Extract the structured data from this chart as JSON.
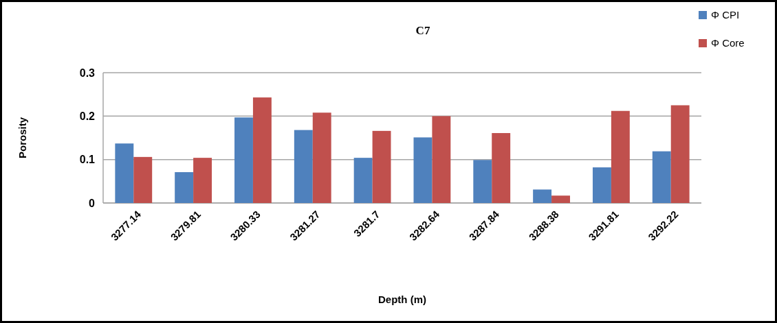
{
  "chart_data": {
    "type": "bar",
    "title": "C7",
    "xlabel": "Depth (m)",
    "ylabel": "Porosity",
    "categories": [
      "3277.14",
      "3279.81",
      "3280.33",
      "3281.27",
      "3281.7",
      "3282.64",
      "3287.84",
      "3288.38",
      "3291.81",
      "3292.22"
    ],
    "series": [
      {
        "name": "Φ CPI",
        "color": "#4f81bd",
        "values": [
          0.137,
          0.071,
          0.197,
          0.168,
          0.104,
          0.151,
          0.099,
          0.031,
          0.082,
          0.119
        ]
      },
      {
        "name": "Φ Core",
        "color": "#c0504d",
        "values": [
          0.106,
          0.104,
          0.243,
          0.208,
          0.166,
          0.2,
          0.161,
          0.017,
          0.212,
          0.225
        ]
      }
    ],
    "ylim": [
      0,
      0.3
    ],
    "yticks": [
      0,
      0.1,
      0.2,
      0.3
    ],
    "grid": "y",
    "legend": "top right"
  }
}
